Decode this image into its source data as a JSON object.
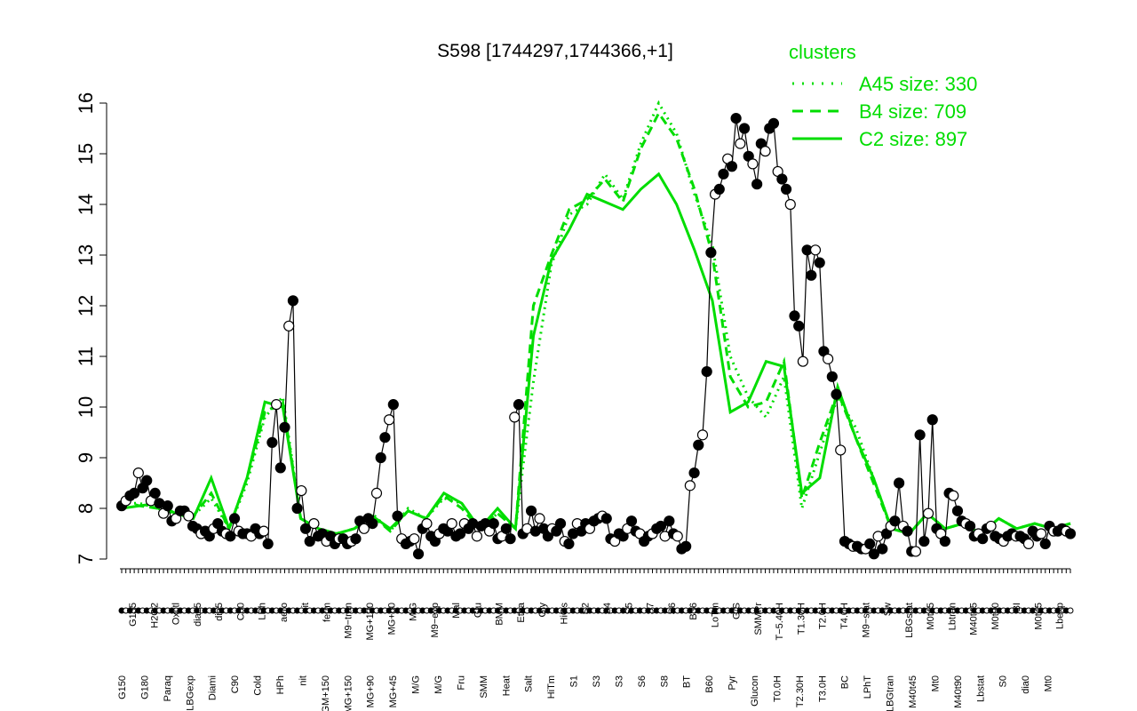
{
  "chart_data": {
    "type": "line",
    "title": "S598 [1744297,1744366,+1]",
    "xlabel": "",
    "ylabel": "",
    "ylim": [
      7,
      16
    ],
    "yticks": [
      7,
      8,
      9,
      10,
      11,
      12,
      13,
      14,
      15,
      16
    ],
    "grid": false,
    "legend": {
      "title": "clusters",
      "placement": "top-right",
      "color": "#00dd00",
      "entries": [
        {
          "label": "A45 size: 330",
          "style": "dotted"
        },
        {
          "label": "B4 size: 709",
          "style": "dashed"
        },
        {
          "label": "C2 size: 897",
          "style": "solid"
        }
      ]
    },
    "x_tick_labels_upper": [
      "G135",
      "H2O2",
      "Oxctl",
      "dia15",
      "dia5",
      "C30",
      "LPh",
      "aero",
      "nit",
      "ferm",
      "M9−tran",
      "MG+120",
      "MG+60",
      "M/G",
      "M9−exp",
      "Mal",
      "Glu",
      "BMM",
      "Etha",
      "Gly",
      "HiOs",
      "S2",
      "S4",
      "S5",
      "S7",
      "S6",
      "B36",
      "LoTm",
      "G/S",
      "SMMPr",
      "T−5.40H",
      "T1.30H",
      "T2.0H",
      "T4.0H",
      "M9−stat",
      "Sw",
      "LBGstat",
      "M0t45",
      "Lbtran",
      "M40t45",
      "M0t90",
      "BI",
      "M0t45",
      "Lbexp"
    ],
    "x_tick_labels_lower": [
      "G150",
      "G180",
      "Paraq",
      "LBGexp",
      "Diami",
      "C90",
      "Cold",
      "HPh",
      "nit",
      "GM+150",
      "MG+150",
      "MG+90",
      "MG+45",
      "M/G",
      "M/G",
      "Fru",
      "SMM",
      "Heat",
      "Salt",
      "HiTm",
      "S1",
      "S3",
      "S3",
      "S6",
      "S8",
      "BT",
      "B60",
      "Pyr",
      "Glucon",
      "T0.0H",
      "T2.30H",
      "T3.0H",
      "BC",
      "LPhT",
      "LBGtran",
      "M40t45",
      "Mt0",
      "M40t90",
      "Lbstat",
      "S0",
      "dia0",
      "Mt0"
    ],
    "series_color": "#000000",
    "cluster_color": "#00dd00",
    "series": [
      {
        "name": "",
        "values": [
          8.05,
          8.15,
          8.25,
          8.3,
          8.7,
          8.4,
          8.55,
          8.15,
          8.3,
          8.1,
          7.9,
          8.05,
          7.75,
          7.8,
          7.95,
          7.95,
          7.85,
          7.65,
          7.6,
          7.5,
          7.55,
          7.45,
          7.6,
          7.7,
          7.55,
          7.5,
          7.45,
          7.8,
          7.55,
          7.5,
          7.5,
          7.45,
          7.6,
          7.5,
          7.55,
          7.3,
          9.3,
          10.05,
          8.8,
          9.6,
          11.6,
          12.1,
          8.0,
          8.35,
          7.6,
          7.35,
          7.7,
          7.45,
          7.5,
          7.35,
          7.45,
          7.3,
          7.4,
          7.4,
          7.3,
          7.35,
          7.4,
          7.75,
          7.6,
          7.8,
          7.7,
          8.3,
          9.0,
          9.4,
          9.75,
          10.05,
          7.85,
          7.4,
          7.3,
          7.35,
          7.4,
          7.1,
          7.6,
          7.7,
          7.45,
          7.35,
          7.5,
          7.6,
          7.55,
          7.7,
          7.45,
          7.5,
          7.7,
          7.6,
          7.7,
          7.45,
          7.65,
          7.7,
          7.55,
          7.7,
          7.4,
          7.45,
          7.6,
          7.4,
          9.8,
          10.05,
          7.5,
          7.6,
          7.95,
          7.55,
          7.8,
          7.6,
          7.45,
          7.6,
          7.55,
          7.7,
          7.35,
          7.3,
          7.5,
          7.7,
          7.55,
          7.7,
          7.6,
          7.75,
          7.8,
          7.85,
          7.8,
          7.4,
          7.35,
          7.5,
          7.45,
          7.6,
          7.75,
          7.55,
          7.5,
          7.35,
          7.45,
          7.5,
          7.6,
          7.65,
          7.45,
          7.75,
          7.5,
          7.45,
          7.2,
          7.25,
          8.45,
          8.7,
          9.25,
          9.45,
          10.7,
          13.05,
          14.2,
          14.3,
          14.6,
          14.9,
          14.75,
          15.7,
          15.2,
          15.5,
          14.95,
          14.8,
          14.4,
          15.2,
          15.05,
          15.5,
          15.6,
          14.65,
          14.5,
          14.3,
          14.0,
          11.8,
          11.6,
          10.9,
          13.1,
          12.6,
          13.1,
          12.85,
          11.1,
          10.95,
          10.6,
          10.25,
          9.15,
          7.35,
          7.3,
          7.25,
          7.25,
          7.2,
          7.2,
          7.3,
          7.1,
          7.45,
          7.2,
          7.5,
          7.65,
          7.75,
          8.5,
          7.65,
          7.55,
          7.15,
          7.15,
          9.45,
          7.35,
          7.9,
          9.75,
          7.6,
          7.5,
          7.35,
          8.3,
          8.25,
          7.95,
          7.75,
          7.7,
          7.65,
          7.45,
          7.5,
          7.4,
          7.6,
          7.65,
          7.45,
          7.4,
          7.35,
          7.45,
          7.5,
          7.45,
          7.45,
          7.4,
          7.3,
          7.55,
          7.45,
          7.5,
          7.3,
          7.65,
          7.55,
          7.55,
          7.6,
          7.55,
          7.5
        ]
      },
      {
        "name": "A45 size: 330",
        "style": "dotted",
        "values": [
          8.1,
          8.1,
          8.0,
          7.9,
          7.85,
          8.2,
          7.6,
          8.5,
          9.8,
          10.2,
          7.8,
          7.6,
          7.5,
          7.6,
          7.9,
          7.55,
          8.0,
          7.8,
          8.2,
          8.1,
          7.6,
          7.9,
          7.6,
          10.5,
          12.8,
          13.8,
          14.0,
          14.6,
          14.1,
          15.2,
          16.0,
          15.4,
          14.2,
          13.2,
          11.0,
          10.2,
          9.8,
          10.6,
          8.0,
          9.1,
          10.2,
          9.6,
          8.6,
          7.6,
          7.5,
          7.9,
          7.6,
          7.7,
          7.5,
          7.8,
          7.6,
          7.7,
          7.6,
          7.7
        ]
      },
      {
        "name": "B4 size: 709",
        "style": "dashed",
        "values": [
          8.15,
          8.05,
          8.0,
          7.9,
          7.85,
          8.3,
          7.6,
          8.6,
          9.9,
          10.1,
          7.8,
          7.6,
          7.5,
          7.6,
          7.85,
          7.55,
          7.95,
          7.8,
          8.25,
          8.0,
          7.6,
          7.9,
          7.6,
          12.0,
          13.0,
          13.9,
          14.1,
          14.5,
          14.05,
          15.1,
          15.8,
          15.3,
          14.3,
          13.0,
          10.6,
          10.0,
          10.1,
          10.9,
          8.2,
          9.3,
          10.3,
          9.4,
          8.5,
          7.6,
          7.5,
          7.9,
          7.6,
          7.7,
          7.5,
          7.8,
          7.6,
          7.7,
          7.6,
          7.7
        ]
      },
      {
        "name": "C2 size: 897",
        "style": "solid",
        "values": [
          8.0,
          8.05,
          8.1,
          7.9,
          7.8,
          8.6,
          7.6,
          8.6,
          10.1,
          10.0,
          7.8,
          7.6,
          7.5,
          7.6,
          7.85,
          7.6,
          7.95,
          7.8,
          8.3,
          8.1,
          7.6,
          8.0,
          7.6,
          11.4,
          12.9,
          13.5,
          14.2,
          14.05,
          13.9,
          14.3,
          14.6,
          14.0,
          13.1,
          12.1,
          9.9,
          10.1,
          10.9,
          10.8,
          8.3,
          8.6,
          10.4,
          9.4,
          8.6,
          7.6,
          7.5,
          7.9,
          7.6,
          7.7,
          7.5,
          7.8,
          7.6,
          7.7,
          7.6,
          7.7
        ]
      }
    ]
  }
}
